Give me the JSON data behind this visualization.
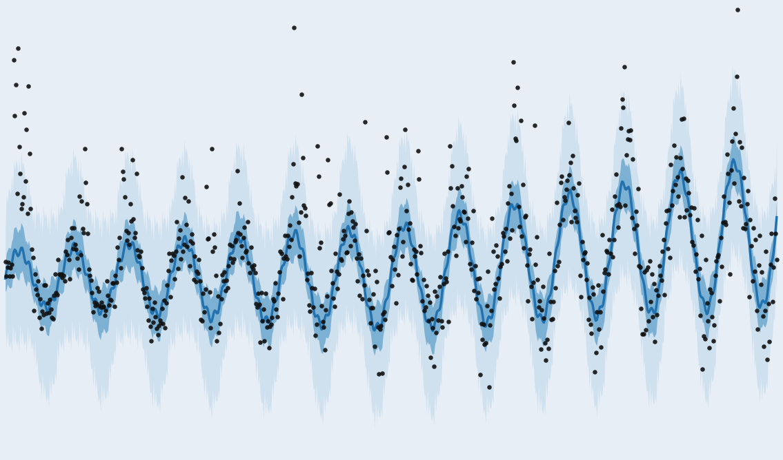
{
  "n_points": 730,
  "seed": 7,
  "plot_bg_color": "#e8eef5",
  "band_color_outer": "#b8d4e8",
  "band_color_inner": "#5b9ec9",
  "line_color": "#2272b0",
  "dot_color": "#111111",
  "line_width": 2.5,
  "dot_size": 22,
  "dot_alpha": 0.9,
  "band_outer_alpha": 0.5,
  "band_inner_alpha": 0.7,
  "grid_color": "#d8dfe8",
  "grid_linewidth": 0.8,
  "spike_period": 52,
  "seasonal_period": 52,
  "inner_ci_scale": 0.5,
  "outer_ci_scale": 1.2
}
